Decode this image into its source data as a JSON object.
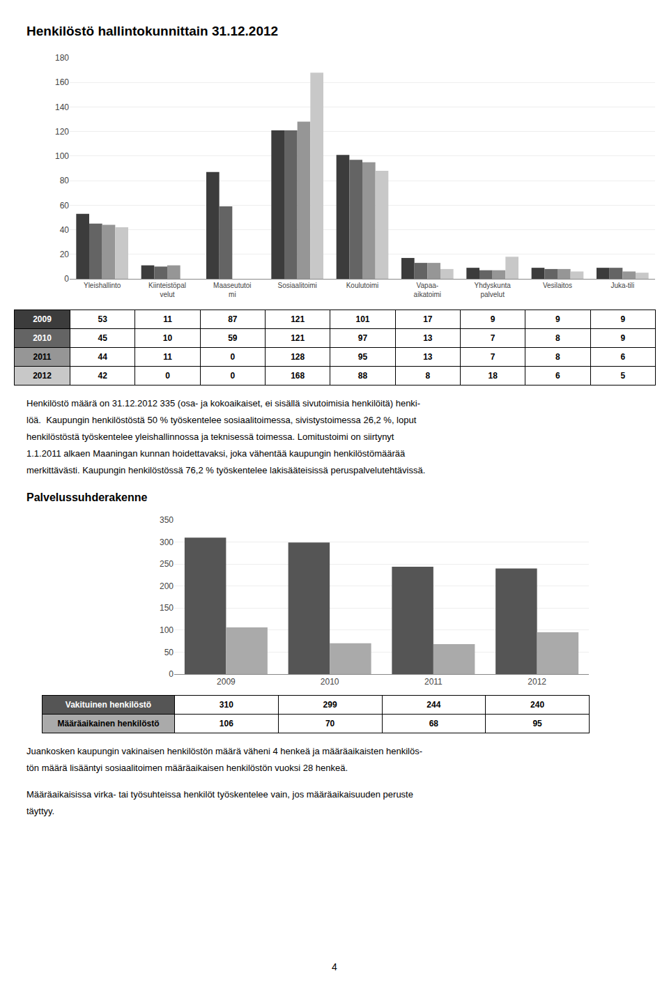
{
  "chart_data": [
    {
      "type": "bar",
      "title": "Henkilöstö hallintokunnittain 31.12.2012",
      "categories": [
        "Yleishallinto",
        "Kiinteistöpal\nvelut",
        "Maaseututoi\nmi",
        "Sosiaalitoimi",
        "Koulutoimi",
        "Vapaa-\naikatoimi",
        "Yhdyskunta\npalvelut",
        "Vesilaitos",
        "Juka-tili"
      ],
      "series": [
        {
          "name": "2009",
          "color": "#3c3c3c",
          "values": [
            53,
            11,
            87,
            121,
            101,
            17,
            9,
            9,
            9
          ]
        },
        {
          "name": "2010",
          "color": "#646464",
          "values": [
            45,
            10,
            59,
            121,
            97,
            13,
            7,
            8,
            9
          ]
        },
        {
          "name": "2011",
          "color": "#969696",
          "values": [
            44,
            11,
            0,
            128,
            95,
            13,
            7,
            8,
            6
          ]
        },
        {
          "name": "2012",
          "color": "#c8c8c8",
          "values": [
            42,
            0,
            0,
            168,
            88,
            8,
            18,
            6,
            5
          ]
        }
      ],
      "ylim": [
        0,
        180
      ],
      "yticks": [
        0,
        20,
        40,
        60,
        80,
        100,
        120,
        140,
        160,
        180
      ],
      "grid": true,
      "annotations": [
        "Henkilöstö määrä on 31.12.2012 335 (osa- ja kokoaikaiset, ei sisällä sivutoimisia henkilöitä) henki-",
        "löä.  Kaupungin henkilöstöstä 50 % työskentelee sosiaalitoimessa, sivistystoimessa 26,2 %, loput",
        "henkilöstöstä työskentelee yleishallinnossa ja teknisessä toimessa. Lomitustoimi on siirtynyt",
        "1.1.2011 alkaen Maaningan kunnan hoidettavaksi, joka vähentää kaupungin henkilöstömäärää",
        "merkittävästi. Kaupungin henkilöstössä 76,2 % työskentelee lakisääteisissä peruspalvelutehtävissä."
      ]
    },
    {
      "type": "bar",
      "title": "Palvelussuhderakenne",
      "categories": [
        "2009",
        "2010",
        "2011",
        "2012"
      ],
      "series": [
        {
          "name": "Vakituinen henkilöstö",
          "color": "#555555",
          "values": [
            310,
            299,
            244,
            240
          ]
        },
        {
          "name": "Määräaikainen henkilöstö",
          "color": "#aaaaaa",
          "values": [
            106,
            70,
            68,
            95
          ]
        }
      ],
      "ylim": [
        0,
        350
      ],
      "yticks": [
        0,
        50,
        100,
        150,
        200,
        250,
        300,
        350
      ],
      "grid": true,
      "annotations": [
        [
          "Juankosken kaupungin vakinaisen henkilöstön määrä väheni 4 henkeä ja määräaikaisten henkilös-",
          "tön määrä lisääntyi sosiaalitoimen määräaikaisen henkilöstön vuoksi 28 henkeä."
        ],
        [
          "Määräaikaisissa virka- tai työsuhteissa henkilöt työskentelee vain, jos määräaikaisuuden peruste",
          "täyttyy."
        ]
      ]
    }
  ],
  "annotations": [
    "4"
  ]
}
